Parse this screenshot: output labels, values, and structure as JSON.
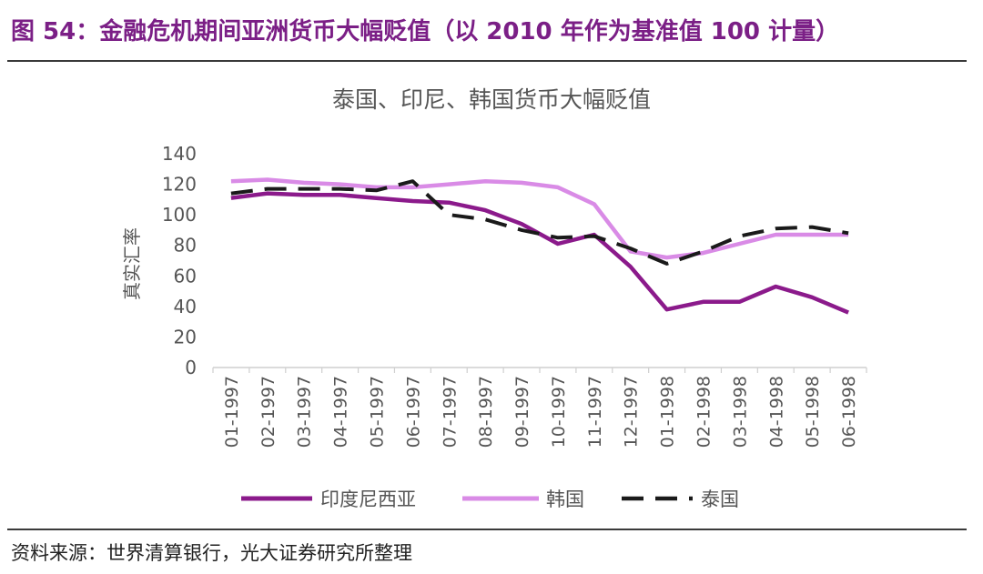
{
  "figure": {
    "title": "图 54：金融危机期间亚洲货币大幅贬值（以 2010 年作为基准值 100 计量）",
    "source": "资料来源：世界清算银行，光大证券研究所整理"
  },
  "chart_data": {
    "type": "line",
    "title": "泰国、印尼、韩国货币大幅贬值",
    "ylabel": "真实汇率",
    "xlabel": "",
    "ylim": [
      0,
      140
    ],
    "yticks": [
      0,
      20,
      40,
      60,
      80,
      100,
      120,
      140
    ],
    "grid": false,
    "legend_position": "bottom",
    "categories": [
      "01-1997",
      "02-1997",
      "03-1997",
      "04-1997",
      "05-1997",
      "06-1997",
      "07-1997",
      "08-1997",
      "09-1997",
      "10-1997",
      "11-1997",
      "12-1997",
      "01-1998",
      "02-1998",
      "03-1998",
      "04-1998",
      "05-1998",
      "06-1998"
    ],
    "series": [
      {
        "name": "印度尼西亚",
        "color": "#8b1a8b",
        "style": "solid",
        "values": [
          111,
          114,
          113,
          113,
          111,
          109,
          108,
          103,
          94,
          81,
          87,
          66,
          38,
          43,
          43,
          53,
          46,
          36
        ]
      },
      {
        "name": "韩国",
        "color": "#d98be6",
        "style": "solid",
        "values": [
          122,
          123,
          121,
          120,
          118,
          118,
          120,
          122,
          121,
          118,
          107,
          76,
          72,
          75,
          81,
          87,
          87,
          87
        ]
      },
      {
        "name": "泰国",
        "color": "#1a1a1a",
        "style": "dashed",
        "values": [
          114,
          117,
          117,
          117,
          116,
          122,
          100,
          97,
          90,
          85,
          86,
          78,
          68,
          76,
          86,
          91,
          92,
          88
        ]
      }
    ]
  }
}
